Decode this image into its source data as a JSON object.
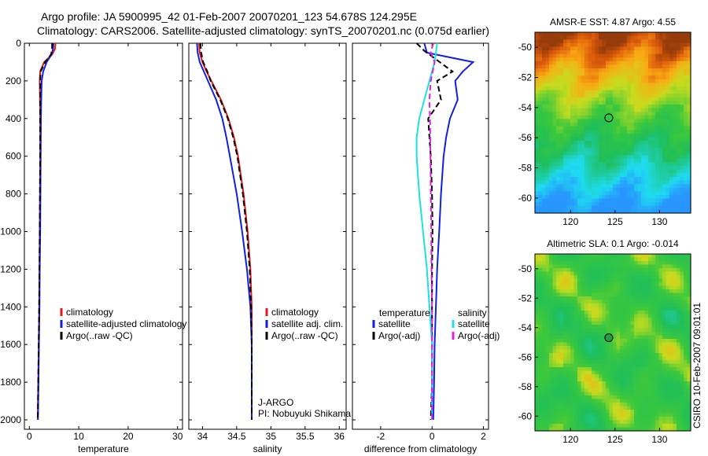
{
  "title_line1": "Argo profile: JA 5900995_42 01-Feb-2007 20070201_123 54.678S 124.295E",
  "title_line2": "Climatology: CARS2006. Satellite-adjusted climatology: synTS_20070201.nc (0.075d earlier)",
  "side_label": "CSIRO 10-Feb-2007 09:01:01",
  "colors": {
    "clim": "#e01818",
    "sat": "#1020e0",
    "argo": "#000000",
    "sat_s": "#20e0e0",
    "argo_s": "#e020e0"
  },
  "chart_data": [
    {
      "type": "line",
      "panel": "temperature",
      "xlabel": "temperature",
      "xlim": [
        -1,
        31
      ],
      "ylim": [
        2050,
        0
      ],
      "xticks": [
        0,
        10,
        20,
        30
      ],
      "xtick_labels": [
        "0",
        "10",
        "20",
        "30"
      ],
      "yticks": [
        0,
        200,
        400,
        600,
        800,
        1000,
        1200,
        1400,
        1600,
        1800,
        2000
      ],
      "ytick_labels": [
        "0",
        "200",
        "400",
        "600",
        "800",
        "1000",
        "1200",
        "1400",
        "1600",
        "1800",
        "2000"
      ],
      "series": [
        {
          "name": "climatology",
          "color": "#e01818",
          "dash": "",
          "width": 2,
          "pressure": [
            0,
            30,
            60,
            100,
            150,
            200,
            300,
            400,
            600,
            800,
            1000,
            1200,
            1400,
            1600,
            1800,
            2000
          ],
          "values": [
            5.3,
            5.2,
            4.6,
            3.0,
            2.2,
            2.1,
            2.15,
            2.2,
            2.2,
            2.15,
            2.1,
            2.05,
            2.0,
            1.9,
            1.8,
            1.7
          ]
        },
        {
          "name": "satellite-adjusted climatology",
          "color": "#1020e0",
          "dash": "",
          "width": 2,
          "pressure": [
            0,
            30,
            60,
            100,
            150,
            200,
            300,
            400,
            600,
            800,
            1000,
            1200,
            1400,
            1600,
            1800,
            2000
          ],
          "values": [
            4.9,
            4.8,
            4.5,
            3.5,
            2.8,
            2.5,
            2.4,
            2.35,
            2.3,
            2.25,
            2.2,
            2.1,
            2.05,
            1.95,
            1.85,
            1.75
          ]
        },
        {
          "name": "Argo(..raw -QC)",
          "color": "#000000",
          "dash": "7,4",
          "width": 2,
          "pressure": [
            0,
            30,
            60,
            100,
            150,
            200,
            300,
            400,
            600,
            800,
            1000,
            1200,
            1400,
            1600,
            1800,
            2000
          ],
          "values": [
            4.6,
            4.6,
            4.4,
            3.2,
            2.3,
            2.2,
            2.2,
            2.2,
            2.2,
            2.15,
            2.1,
            2.05,
            2.0,
            1.9,
            1.8,
            1.7
          ]
        }
      ],
      "legend": [
        "climatology",
        "satellite-adjusted climatology",
        "Argo(..raw -QC)"
      ]
    },
    {
      "type": "line",
      "panel": "salinity",
      "xlabel": "salinity",
      "xlim": [
        33.8,
        36.1
      ],
      "ylim": [
        2050,
        0
      ],
      "xticks": [
        34,
        34.5,
        35,
        35.5,
        36
      ],
      "xtick_labels": [
        "34",
        "34.5",
        "35",
        "35.5",
        "36"
      ],
      "yticks": [
        0,
        200,
        400,
        600,
        800,
        1000,
        1200,
        1400,
        1600,
        1800,
        2000
      ],
      "series": [
        {
          "name": "climatology",
          "color": "#e01818",
          "dash": "",
          "width": 2,
          "pressure": [
            0,
            50,
            100,
            150,
            200,
            300,
            400,
            500,
            600,
            800,
            1000,
            1200,
            1400,
            1600,
            1800,
            2000
          ],
          "values": [
            33.95,
            33.96,
            34.0,
            34.06,
            34.13,
            34.27,
            34.38,
            34.46,
            34.52,
            34.6,
            34.66,
            34.7,
            34.72,
            34.72,
            34.72,
            34.72
          ]
        },
        {
          "name": "satellite adj. clim.",
          "color": "#1020e0",
          "dash": "",
          "width": 2,
          "pressure": [
            0,
            50,
            100,
            150,
            200,
            300,
            400,
            500,
            600,
            800,
            1000,
            1200,
            1400,
            1600,
            1800,
            2000
          ],
          "values": [
            33.92,
            33.93,
            33.96,
            34.02,
            34.08,
            34.2,
            34.29,
            34.35,
            34.4,
            34.5,
            34.58,
            34.65,
            34.7,
            34.72,
            34.72,
            34.72
          ]
        },
        {
          "name": "Argo(..raw -QC)",
          "color": "#000000",
          "dash": "7,4",
          "width": 2,
          "pressure": [
            0,
            50,
            100,
            150,
            200,
            300,
            400,
            500,
            600,
            800,
            1000,
            1200,
            1400,
            1600,
            1800,
            2000
          ],
          "values": [
            33.97,
            33.98,
            34.01,
            34.07,
            34.12,
            34.26,
            34.37,
            34.45,
            34.51,
            34.59,
            34.65,
            34.69,
            34.71,
            34.72,
            34.72,
            34.72
          ]
        }
      ],
      "legend": [
        "climatology",
        "satellite adj. clim.",
        "Argo(..raw -QC)"
      ],
      "annotation": [
        "J-ARGO",
        "PI: Nobuyuki Shikama"
      ]
    },
    {
      "type": "line",
      "panel": "difference",
      "xlabel": "difference from climatology",
      "xlim": [
        -3.1,
        2.2
      ],
      "ylim": [
        2050,
        0
      ],
      "xticks": [
        -2,
        0,
        2
      ],
      "xtick_labels": [
        "-2",
        "0",
        "2"
      ],
      "yticks": [
        0,
        200,
        400,
        600,
        800,
        1000,
        1200,
        1400,
        1600,
        1800,
        2000
      ],
      "series": [
        {
          "name": "temperature satellite",
          "color": "#1020e0",
          "dash": "",
          "width": 2,
          "pressure": [
            0,
            50,
            100,
            150,
            200,
            300,
            400,
            500,
            600,
            800,
            1000,
            1200,
            1400,
            1600,
            1800,
            2000
          ],
          "values": [
            -0.3,
            -0.2,
            1.6,
            1.2,
            0.9,
            1.0,
            0.7,
            0.55,
            0.45,
            0.35,
            0.28,
            0.2,
            0.15,
            0.1,
            0.08,
            0.05
          ]
        },
        {
          "name": "temperature Argo(-adj)",
          "color": "#000000",
          "dash": "7,4",
          "width": 2,
          "pressure": [
            0,
            40,
            100,
            150,
            200,
            300,
            400,
            500,
            600,
            800,
            1000,
            1200,
            1400,
            1600,
            1800,
            2000
          ],
          "values": [
            -0.6,
            -0.3,
            0.3,
            0.8,
            0.2,
            0.35,
            -0.15,
            -0.1,
            -0.05,
            0.0,
            0.02,
            0.0,
            0.0,
            0.0,
            0.0,
            -0.05
          ]
        },
        {
          "name": "salinity satellite",
          "color": "#20e0e0",
          "dash": "",
          "width": 2,
          "pressure": [
            0,
            100,
            200,
            300,
            400,
            500,
            600,
            800,
            1000,
            1200,
            1400,
            1600,
            1800,
            2000
          ],
          "values": [
            0.2,
            0.1,
            -0.1,
            -0.3,
            -0.5,
            -0.6,
            -0.6,
            -0.5,
            -0.35,
            -0.2,
            -0.1,
            0.0,
            0.0,
            0.0
          ]
        },
        {
          "name": "salinity Argo(-adj)",
          "color": "#e020e0",
          "dash": "7,4",
          "width": 2,
          "pressure": [
            0,
            50,
            100,
            200,
            300,
            400,
            600,
            800,
            1000,
            1200,
            1400,
            1600,
            1800,
            2000
          ],
          "values": [
            0.05,
            -0.05,
            0.1,
            -0.05,
            -0.1,
            -0.08,
            -0.06,
            -0.05,
            -0.03,
            -0.02,
            0.0,
            0.0,
            0.0,
            0.0
          ]
        }
      ],
      "legend_headers": [
        "temperature",
        "salinity"
      ],
      "legend": [
        {
          "label": "satellite",
          "color": "#1020e0"
        },
        {
          "label": "Argo(-adj)",
          "color": "#000000"
        },
        {
          "label": "satellite",
          "color": "#20e0e0"
        },
        {
          "label": "Argo(-adj)",
          "color": "#e020e0"
        }
      ]
    },
    {
      "type": "heatmap",
      "panel": "sst",
      "title": "AMSR-E SST: 4.87 Argo: 4.55",
      "xlim": [
        116,
        133.5
      ],
      "ylim": [
        -61,
        -49
      ],
      "xticks": [
        120,
        125,
        130
      ],
      "xtick_labels": [
        "120",
        "125",
        "130"
      ],
      "yticks": [
        -50,
        -52,
        -54,
        -56,
        -58,
        -60
      ],
      "ytick_labels": [
        "-50",
        "-52",
        "-54",
        "-56",
        "-58",
        "-60"
      ],
      "marker": {
        "lon": 124.3,
        "lat": -54.68
      }
    },
    {
      "type": "heatmap",
      "panel": "sla",
      "title": "Altimetric SLA: 0.1 Argo: -0.014",
      "xlim": [
        116,
        133.5
      ],
      "ylim": [
        -61,
        -49
      ],
      "xticks": [
        120,
        125,
        130
      ],
      "xtick_labels": [
        "120",
        "125",
        "130"
      ],
      "yticks": [
        -50,
        -52,
        -54,
        -56,
        -58,
        -60
      ],
      "ytick_labels": [
        "-50",
        "-52",
        "-54",
        "-56",
        "-58",
        "-60"
      ],
      "marker": {
        "lon": 124.3,
        "lat": -54.68
      }
    }
  ]
}
